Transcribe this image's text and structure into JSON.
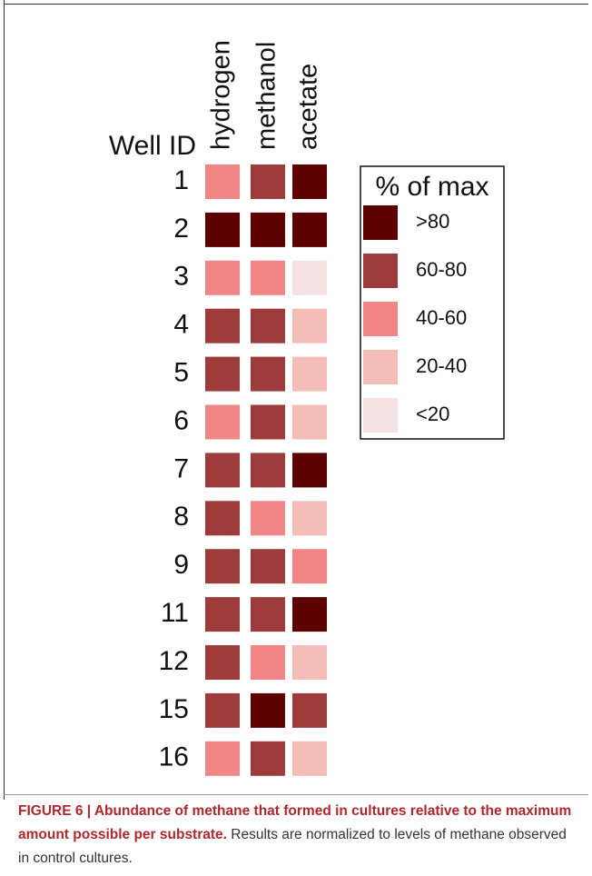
{
  "chart_data": {
    "type": "heatmap",
    "row_axis_label": "Well ID",
    "rows": [
      "1",
      "2",
      "3",
      "4",
      "5",
      "6",
      "7",
      "8",
      "9",
      "11",
      "12",
      "15",
      "16"
    ],
    "columns": [
      "hydrogen",
      "methanol",
      "acetate"
    ],
    "legend_title": "% of max",
    "legend": [
      {
        "label": ">80",
        "color": "#5c0000"
      },
      {
        "label": "60-80",
        "color": "#9e3b3b"
      },
      {
        "label": "40-60",
        "color": "#f08686"
      },
      {
        "label": "20-40",
        "color": "#f4bdb8"
      },
      {
        "label": "<20",
        "color": "#f5e3e3"
      }
    ],
    "values": [
      [
        "40-60",
        "60-80",
        ">80"
      ],
      [
        ">80",
        ">80",
        ">80"
      ],
      [
        "40-60",
        "40-60",
        "<20"
      ],
      [
        "60-80",
        "60-80",
        "20-40"
      ],
      [
        "60-80",
        "60-80",
        "20-40"
      ],
      [
        "40-60",
        "60-80",
        "20-40"
      ],
      [
        "60-80",
        "60-80",
        ">80"
      ],
      [
        "60-80",
        "40-60",
        "20-40"
      ],
      [
        "60-80",
        "60-80",
        "40-60"
      ],
      [
        "60-80",
        "60-80",
        ">80"
      ],
      [
        "60-80",
        "40-60",
        "20-40"
      ],
      [
        "60-80",
        ">80",
        "60-80"
      ],
      [
        "40-60",
        "60-80",
        "20-40"
      ]
    ]
  },
  "caption": {
    "bold": "FIGURE 6 | Abundance of methane that formed in cultures relative to the maximum amount possible per substrate.",
    "text": "Results are normalized to levels of methane observed in control cultures."
  }
}
